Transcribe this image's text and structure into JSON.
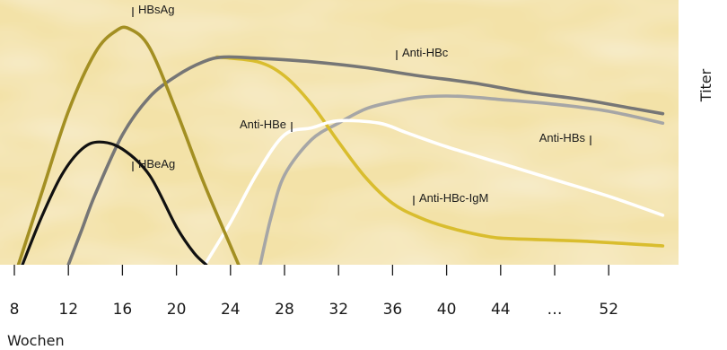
{
  "chart_data": {
    "type": "line",
    "xlabel": "Wochen",
    "ylabel": "Titer",
    "x_ticks": [
      "8",
      "12",
      "16",
      "20",
      "24",
      "28",
      "32",
      "36",
      "40",
      "44",
      "…",
      "52"
    ],
    "colors": {
      "background": "#f3e2a8",
      "HBsAg": "#a38f22",
      "HBeAg": "#111111",
      "Anti-HBc": "#767676",
      "Anti-HBc-IgM": "#d9bd2e",
      "Anti-HBe": "#ffffff",
      "Anti-HBs": "#a6a6a6"
    },
    "series": [
      {
        "name": "HBsAg",
        "points": [
          [
            8.3,
            0
          ],
          [
            10,
            0.3
          ],
          [
            12,
            0.65
          ],
          [
            14,
            0.9
          ],
          [
            15.5,
            0.99
          ],
          [
            16.5,
            1.0
          ],
          [
            18,
            0.92
          ],
          [
            20,
            0.65
          ],
          [
            22,
            0.35
          ],
          [
            24,
            0.08
          ],
          [
            24.6,
            0
          ]
        ]
      },
      {
        "name": "HBeAg",
        "points": [
          [
            8.6,
            0
          ],
          [
            10,
            0.2
          ],
          [
            11.5,
            0.38
          ],
          [
            13,
            0.49
          ],
          [
            14.3,
            0.52
          ],
          [
            16,
            0.49
          ],
          [
            18,
            0.38
          ],
          [
            20,
            0.16
          ],
          [
            21.3,
            0.05
          ],
          [
            22.2,
            0
          ]
        ]
      },
      {
        "name": "Anti-HBc",
        "points": [
          [
            12,
            0
          ],
          [
            13,
            0.15
          ],
          [
            14,
            0.3
          ],
          [
            16,
            0.55
          ],
          [
            18,
            0.71
          ],
          [
            20,
            0.8
          ],
          [
            22,
            0.86
          ],
          [
            23.5,
            0.88
          ],
          [
            26,
            0.875
          ],
          [
            30,
            0.86
          ],
          [
            34,
            0.835
          ],
          [
            38,
            0.8
          ],
          [
            42,
            0.77
          ],
          [
            46,
            0.73
          ],
          [
            50,
            0.7
          ],
          [
            54,
            0.66
          ],
          [
            56,
            0.64
          ]
        ]
      },
      {
        "name": "Anti-HBc-IgM",
        "points": [
          [
            23,
            0.88
          ],
          [
            26,
            0.86
          ],
          [
            28,
            0.8
          ],
          [
            30,
            0.68
          ],
          [
            32,
            0.52
          ],
          [
            34,
            0.37
          ],
          [
            36,
            0.26
          ],
          [
            38,
            0.2
          ],
          [
            40,
            0.16
          ],
          [
            43,
            0.12
          ],
          [
            45,
            0.11
          ],
          [
            50,
            0.1
          ],
          [
            56,
            0.08
          ]
        ]
      },
      {
        "name": "Anti-HBe",
        "points": [
          [
            22.1,
            0
          ],
          [
            24,
            0.18
          ],
          [
            26,
            0.39
          ],
          [
            28,
            0.55
          ],
          [
            30,
            0.58
          ],
          [
            32,
            0.61
          ],
          [
            35,
            0.6
          ],
          [
            37,
            0.56
          ],
          [
            40,
            0.5
          ],
          [
            44,
            0.43
          ],
          [
            48,
            0.36
          ],
          [
            52,
            0.29
          ],
          [
            56,
            0.21
          ]
        ]
      },
      {
        "name": "Anti-HBs",
        "points": [
          [
            26.2,
            0
          ],
          [
            27,
            0.2
          ],
          [
            28,
            0.38
          ],
          [
            30,
            0.53
          ],
          [
            32,
            0.6
          ],
          [
            34,
            0.66
          ],
          [
            36,
            0.69
          ],
          [
            38,
            0.71
          ],
          [
            40,
            0.715
          ],
          [
            42,
            0.71
          ],
          [
            44,
            0.7
          ],
          [
            48,
            0.68
          ],
          [
            52,
            0.65
          ],
          [
            56,
            0.6
          ]
        ]
      }
    ],
    "annotations": [
      {
        "text": "HBsAg",
        "series": "HBsAg"
      },
      {
        "text": "HBeAg",
        "series": "HBeAg"
      },
      {
        "text": "Anti-HBc",
        "series": "Anti-HBc"
      },
      {
        "text": "Anti-HBe",
        "series": "Anti-HBe"
      },
      {
        "text": "Anti-HBs",
        "series": "Anti-HBs"
      },
      {
        "text": "Anti-HBc-IgM",
        "series": "Anti-HBc-IgM"
      }
    ]
  }
}
